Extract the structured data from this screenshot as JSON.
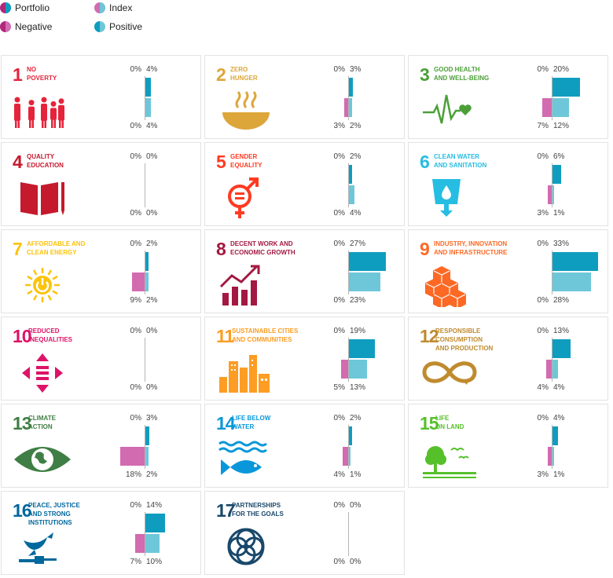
{
  "legend": {
    "items": [
      {
        "label": "Portfolio",
        "icon": "portfolio-swatch-icon"
      },
      {
        "label": "Index",
        "icon": "index-swatch-icon"
      },
      {
        "label": "Negative",
        "icon": "negative-swatch-icon"
      },
      {
        "label": "Positive",
        "icon": "positive-swatch-icon"
      }
    ]
  },
  "colors": {
    "positive_portfolio": "#0f9dbf",
    "positive_index": "#6dc7d9",
    "negative_portfolio": "#b0287b",
    "negative_index": "#d26bb0"
  },
  "chart_data": {
    "type": "bar",
    "orientation": "horizontal-diverging",
    "unit": "%",
    "series": [
      {
        "name": "Portfolio"
      },
      {
        "name": "Index"
      }
    ],
    "goals": [
      {
        "num": "1",
        "title": "NO\nPOVERTY",
        "color": "#e5243b",
        "icon": "family-icon",
        "portfolio": {
          "negative": 0,
          "positive": 4
        },
        "index": {
          "negative": 0,
          "positive": 4
        },
        "labels": {
          "top_left": "0%",
          "top_right": "4%",
          "bottom_left": "0%",
          "bottom_right": "4%"
        }
      },
      {
        "num": "2",
        "title": "ZERO\nHUNGER",
        "color": "#dda63a",
        "icon": "bowl-icon",
        "portfolio": {
          "negative": 0,
          "positive": 3
        },
        "index": {
          "negative": 3,
          "positive": 2
        },
        "labels": {
          "top_left": "0%",
          "top_right": "3%",
          "bottom_left": "3%",
          "bottom_right": "2%"
        }
      },
      {
        "num": "3",
        "title": "GOOD HEALTH\nAND WELL-BEING",
        "color": "#4c9f38",
        "icon": "heartbeat-icon",
        "portfolio": {
          "negative": 0,
          "positive": 20
        },
        "index": {
          "negative": 7,
          "positive": 12
        },
        "labels": {
          "top_left": "0%",
          "top_right": "20%",
          "bottom_left": "7%",
          "bottom_right": "12%"
        }
      },
      {
        "num": "4",
        "title": "QUALITY\nEDUCATION",
        "color": "#c5192d",
        "icon": "book-icon",
        "portfolio": {
          "negative": 0,
          "positive": 0
        },
        "index": {
          "negative": 0,
          "positive": 0
        },
        "labels": {
          "top_left": "0%",
          "top_right": "0%",
          "bottom_left": "0%",
          "bottom_right": "0%"
        }
      },
      {
        "num": "5",
        "title": "GENDER\nEQUALITY",
        "color": "#ff3a21",
        "icon": "gender-icon",
        "portfolio": {
          "negative": 0,
          "positive": 2
        },
        "index": {
          "negative": 0,
          "positive": 4
        },
        "labels": {
          "top_left": "0%",
          "top_right": "2%",
          "bottom_left": "0%",
          "bottom_right": "4%"
        }
      },
      {
        "num": "6",
        "title": "CLEAN WATER\nAND SANITATION",
        "color": "#26bde2",
        "icon": "water-glass-icon",
        "portfolio": {
          "negative": 0,
          "positive": 6
        },
        "index": {
          "negative": 3,
          "positive": 1
        },
        "labels": {
          "top_left": "0%",
          "top_right": "6%",
          "bottom_left": "3%",
          "bottom_right": "1%"
        }
      },
      {
        "num": "7",
        "title": "AFFORDABLE AND\nCLEAN ENERGY",
        "color": "#fcc30b",
        "icon": "sun-power-icon",
        "portfolio": {
          "negative": 0,
          "positive": 2
        },
        "index": {
          "negative": 9,
          "positive": 2
        },
        "labels": {
          "top_left": "0%",
          "top_right": "2%",
          "bottom_left": "9%",
          "bottom_right": "2%"
        }
      },
      {
        "num": "8",
        "title": "DECENT WORK AND\nECONOMIC GROWTH",
        "color": "#a21942",
        "icon": "growth-chart-icon",
        "portfolio": {
          "negative": 0,
          "positive": 27
        },
        "index": {
          "negative": 0,
          "positive": 23
        },
        "labels": {
          "top_left": "0%",
          "top_right": "27%",
          "bottom_left": "0%",
          "bottom_right": "23%"
        }
      },
      {
        "num": "9",
        "title": "INDUSTRY, INNOVATION\nAND INFRASTRUCTURE",
        "color": "#fd6925",
        "icon": "cubes-icon",
        "portfolio": {
          "negative": 0,
          "positive": 33
        },
        "index": {
          "negative": 0,
          "positive": 28
        },
        "labels": {
          "top_left": "0%",
          "top_right": "33%",
          "bottom_left": "0%",
          "bottom_right": "28%"
        }
      },
      {
        "num": "10",
        "title": "REDUCED\nINEQUALITIES",
        "color": "#dd1367",
        "icon": "equality-arrows-icon",
        "portfolio": {
          "negative": 0,
          "positive": 0
        },
        "index": {
          "negative": 0,
          "positive": 0
        },
        "labels": {
          "top_left": "0%",
          "top_right": "0%",
          "bottom_left": "0%",
          "bottom_right": "0%"
        }
      },
      {
        "num": "11",
        "title": "SUSTAINABLE CITIES\nAND COMMUNITIES",
        "color": "#fd9d24",
        "icon": "city-icon",
        "portfolio": {
          "negative": 0,
          "positive": 19
        },
        "index": {
          "negative": 5,
          "positive": 13
        },
        "labels": {
          "top_left": "0%",
          "top_right": "19%",
          "bottom_left": "5%",
          "bottom_right": "13%"
        }
      },
      {
        "num": "12",
        "title": "RESPONSIBLE\nCONSUMPTION\nAND PRODUCTION",
        "color": "#bf8b2e",
        "icon": "infinity-icon",
        "portfolio": {
          "negative": 0,
          "positive": 13
        },
        "index": {
          "negative": 4,
          "positive": 4
        },
        "labels": {
          "top_left": "0%",
          "top_right": "13%",
          "bottom_left": "4%",
          "bottom_right": "4%"
        }
      },
      {
        "num": "13",
        "title": "CLIMATE\nACTION",
        "color": "#3f7e44",
        "icon": "earth-eye-icon",
        "portfolio": {
          "negative": 0,
          "positive": 3
        },
        "index": {
          "negative": 18,
          "positive": 2
        },
        "labels": {
          "top_left": "0%",
          "top_right": "3%",
          "bottom_left": "18%",
          "bottom_right": "2%"
        }
      },
      {
        "num": "14",
        "title": "LIFE BELOW\nWATER",
        "color": "#0a97d9",
        "icon": "fish-icon",
        "portfolio": {
          "negative": 0,
          "positive": 2
        },
        "index": {
          "negative": 4,
          "positive": 1
        },
        "labels": {
          "top_left": "0%",
          "top_right": "2%",
          "bottom_left": "4%",
          "bottom_right": "1%"
        }
      },
      {
        "num": "15",
        "title": "LIFE\nON LAND",
        "color": "#56c02b",
        "icon": "tree-birds-icon",
        "portfolio": {
          "negative": 0,
          "positive": 4
        },
        "index": {
          "negative": 3,
          "positive": 1
        },
        "labels": {
          "top_left": "0%",
          "top_right": "4%",
          "bottom_left": "3%",
          "bottom_right": "1%"
        }
      },
      {
        "num": "16",
        "title": "PEACE, JUSTICE\nAND STRONG\nINSTITUTIONS",
        "color": "#00689d",
        "icon": "dove-gavel-icon",
        "portfolio": {
          "negative": 0,
          "positive": 14
        },
        "index": {
          "negative": 7,
          "positive": 10
        },
        "labels": {
          "top_left": "0%",
          "top_right": "14%",
          "bottom_left": "7%",
          "bottom_right": "10%"
        }
      },
      {
        "num": "17",
        "title": "PARTNERSHIPS\nFOR THE GOALS",
        "color": "#19486a",
        "icon": "rings-icon",
        "portfolio": {
          "negative": 0,
          "positive": 0
        },
        "index": {
          "negative": 0,
          "positive": 0
        },
        "labels": {
          "top_left": "0%",
          "top_right": "0%",
          "bottom_left": "0%",
          "bottom_right": "0%"
        }
      }
    ]
  }
}
